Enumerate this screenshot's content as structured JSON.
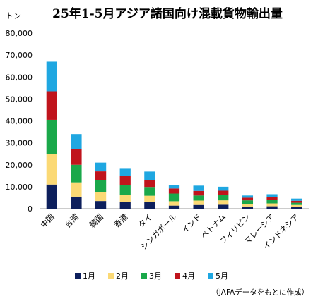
{
  "chart_data": {
    "type": "bar",
    "stacked": true,
    "title": "25年1-5月アジア諸国向け混載貨物輸出量",
    "ylabel": "トン",
    "xlabel": "",
    "ylim": [
      0,
      80000
    ],
    "yticks": [
      "0",
      "10,000",
      "20,000",
      "30,000",
      "40,000",
      "50,000",
      "60,000",
      "70,000",
      "80,000"
    ],
    "categories": [
      "中国",
      "台湾",
      "韓国",
      "香港",
      "タイ",
      "シンガポール",
      "インド",
      "ベトナム",
      "フィリピン",
      "マレーシア",
      "インドネシア"
    ],
    "series": [
      {
        "name": "1月",
        "color": "#0d1f5c",
        "values": [
          11000,
          5500,
          3500,
          2900,
          2900,
          1400,
          1700,
          1800,
          1000,
          1100,
          800
        ]
      },
      {
        "name": "2月",
        "color": "#fbd975",
        "values": [
          14000,
          6500,
          4000,
          3500,
          3000,
          2000,
          2000,
          2000,
          1200,
          1300,
          900
        ]
      },
      {
        "name": "3月",
        "color": "#1aa84a",
        "values": [
          15500,
          8000,
          5500,
          4500,
          4000,
          3500,
          2300,
          2400,
          1600,
          1600,
          1000
        ]
      },
      {
        "name": "4月",
        "color": "#c0141c",
        "values": [
          13000,
          7000,
          4000,
          4000,
          3100,
          2300,
          2100,
          2000,
          1200,
          1200,
          900
        ]
      },
      {
        "name": "5月",
        "color": "#1fa7e1",
        "values": [
          13500,
          7000,
          4000,
          3600,
          3900,
          1600,
          2400,
          1800,
          1000,
          1400,
          1000
        ]
      }
    ],
    "legend_position": "bottom",
    "grid": false
  },
  "source_note": "（JAFAデータをもとに作成）"
}
